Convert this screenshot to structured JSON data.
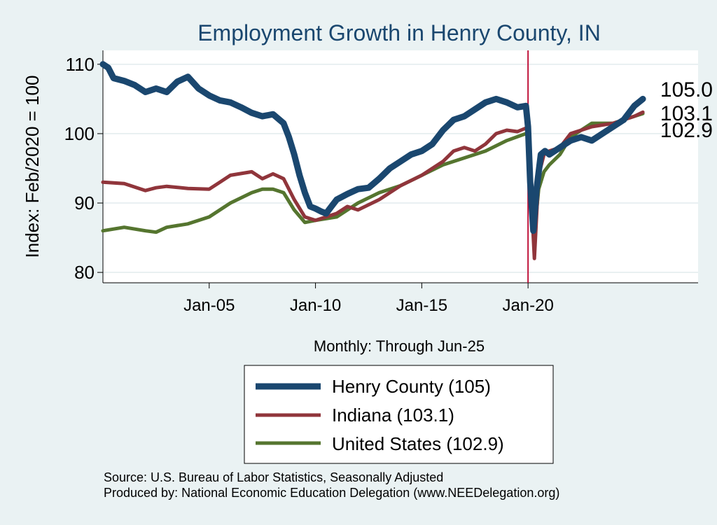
{
  "chart_data": {
    "type": "line",
    "title": "Employment Growth in Henry  County, IN",
    "ylabel": "Index: Feb/2020 = 100",
    "xlabel": "Monthly: Through Jun-25",
    "ylim": [
      78.5,
      112
    ],
    "yticks": [
      80,
      90,
      100,
      110
    ],
    "xlim": [
      2000.0,
      2028.0
    ],
    "xticks": [
      {
        "label": "Jan-05",
        "year": 2005.0
      },
      {
        "label": "Jan-10",
        "year": 2010.0
      },
      {
        "label": "Jan-15",
        "year": 2015.0
      },
      {
        "label": "Jan-20",
        "year": 2020.0
      }
    ],
    "reference_line": {
      "year": 2020.0,
      "color": "#c0143c"
    },
    "grid": true,
    "series": [
      {
        "name": "Henry  County",
        "legend_label": "Henry  County (105)",
        "end_label": "105.0",
        "color": "#1a476f",
        "width": 9,
        "x": [
          2000.0,
          2000.25,
          2000.5,
          2000.75,
          2001.0,
          2001.5,
          2002.0,
          2002.5,
          2003.0,
          2003.5,
          2004.0,
          2004.5,
          2005.0,
          2005.5,
          2006.0,
          2006.5,
          2007.0,
          2007.5,
          2008.0,
          2008.5,
          2008.75,
          2009.0,
          2009.25,
          2009.5,
          2009.75,
          2010.0,
          2010.25,
          2010.5,
          2010.75,
          2011.0,
          2011.5,
          2012.0,
          2012.5,
          2013.0,
          2013.5,
          2014.0,
          2014.5,
          2015.0,
          2015.5,
          2016.0,
          2016.5,
          2017.0,
          2017.5,
          2018.0,
          2018.5,
          2019.0,
          2019.5,
          2019.9,
          2020.0,
          2020.1,
          2020.25,
          2020.4,
          2020.6,
          2020.8,
          2021.0,
          2021.5,
          2022.0,
          2022.5,
          2023.0,
          2023.5,
          2024.0,
          2024.5,
          2025.0,
          2025.4
        ],
        "values": [
          110.0,
          109.5,
          108.0,
          107.8,
          107.6,
          107.0,
          106.0,
          106.5,
          106.0,
          107.5,
          108.2,
          106.5,
          105.5,
          104.8,
          104.5,
          103.8,
          103.0,
          102.5,
          102.8,
          101.5,
          99.5,
          97.0,
          94.0,
          91.5,
          89.5,
          89.2,
          88.8,
          88.5,
          89.5,
          90.5,
          91.3,
          92.0,
          92.2,
          93.5,
          95.0,
          96.0,
          97.0,
          97.5,
          98.5,
          100.5,
          102.0,
          102.5,
          103.5,
          104.5,
          105.0,
          104.5,
          103.8,
          104.0,
          101.0,
          93.0,
          86.0,
          92.0,
          97.0,
          97.5,
          97.0,
          98.0,
          99.0,
          99.5,
          99.0,
          100.0,
          101.0,
          102.0,
          104.0,
          105.0
        ]
      },
      {
        "name": "Indiana",
        "legend_label": "Indiana (103.1)",
        "end_label": "103.1",
        "color": "#90353b",
        "width": 5,
        "x": [
          2000.0,
          2001.0,
          2002.0,
          2002.5,
          2003.0,
          2004.0,
          2005.0,
          2005.5,
          2006.0,
          2007.0,
          2007.5,
          2008.0,
          2008.5,
          2009.0,
          2009.5,
          2010.0,
          2010.5,
          2011.0,
          2011.5,
          2012.0,
          2013.0,
          2014.0,
          2015.0,
          2016.0,
          2016.5,
          2017.0,
          2017.5,
          2018.0,
          2018.5,
          2019.0,
          2019.5,
          2019.9,
          2020.0,
          2020.15,
          2020.3,
          2020.5,
          2020.75,
          2021.0,
          2021.5,
          2022.0,
          2022.5,
          2023.0,
          2024.0,
          2025.0,
          2025.4
        ],
        "values": [
          93.0,
          92.8,
          91.8,
          92.2,
          92.4,
          92.1,
          92.0,
          93.0,
          94.0,
          94.5,
          93.5,
          94.2,
          93.5,
          90.5,
          88.0,
          87.5,
          88.0,
          88.5,
          89.5,
          89.0,
          90.5,
          92.5,
          94.0,
          96.0,
          97.5,
          98.0,
          97.5,
          98.5,
          100.0,
          100.5,
          100.3,
          100.8,
          100.0,
          91.0,
          82.0,
          94.0,
          97.0,
          97.5,
          98.0,
          100.0,
          100.5,
          101.0,
          101.5,
          102.5,
          103.1
        ]
      },
      {
        "name": "United States",
        "legend_label": "United States (102.9)",
        "end_label": "102.9",
        "color": "#55752f",
        "width": 5,
        "x": [
          2000.0,
          2001.0,
          2002.0,
          2002.5,
          2003.0,
          2004.0,
          2005.0,
          2006.0,
          2007.0,
          2007.5,
          2008.0,
          2008.5,
          2009.0,
          2009.5,
          2010.0,
          2011.0,
          2012.0,
          2013.0,
          2014.0,
          2015.0,
          2016.0,
          2017.0,
          2018.0,
          2019.0,
          2019.9,
          2020.0,
          2020.15,
          2020.3,
          2020.5,
          2020.75,
          2021.0,
          2021.5,
          2022.0,
          2022.5,
          2023.0,
          2024.0,
          2025.0,
          2025.4
        ],
        "values": [
          86.0,
          86.5,
          86.0,
          85.8,
          86.5,
          87.0,
          88.0,
          90.0,
          91.5,
          92.0,
          92.0,
          91.5,
          89.0,
          87.2,
          87.5,
          88.0,
          90.0,
          91.5,
          92.5,
          94.0,
          95.5,
          96.5,
          97.5,
          99.0,
          100.0,
          100.0,
          92.0,
          85.5,
          92.0,
          94.5,
          95.5,
          97.0,
          99.5,
          100.5,
          101.5,
          101.5,
          102.5,
          102.9
        ]
      }
    ]
  },
  "legend": {
    "items": [
      {
        "label": "Henry  County (105)",
        "color": "#1a476f"
      },
      {
        "label": "Indiana (103.1)",
        "color": "#90353b"
      },
      {
        "label": "United States (102.9)",
        "color": "#55752f"
      }
    ]
  },
  "footer": {
    "source": "Source: U.S. Bureau of Labor Statistics, Seasonally Adjusted",
    "produced_by": "Produced by: National Economic Education Delegation (www.NEEDelegation.org)"
  }
}
